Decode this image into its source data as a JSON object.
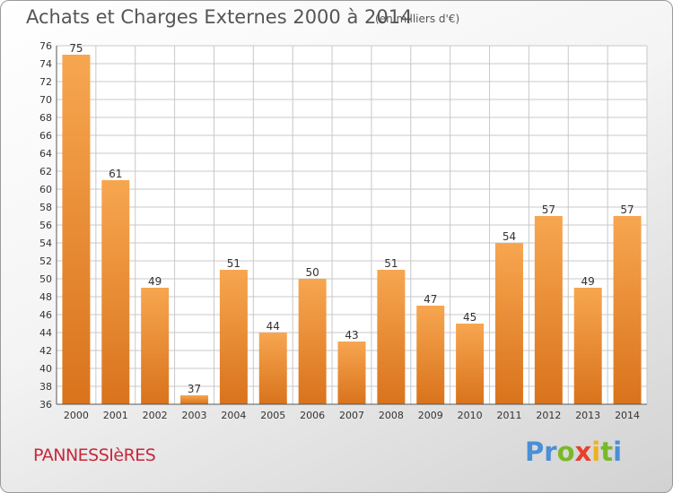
{
  "header": {
    "title": "Achats et Charges Externes 2000 à 2014",
    "subtitle": "(en milliers d'€)"
  },
  "footer": {
    "town": "PANNESSIèRES",
    "logo": {
      "letters": [
        "P",
        "r",
        "o",
        "x",
        "i",
        "t",
        "i"
      ],
      "colors": [
        "#4a8fd8",
        "#4a8fd8",
        "#79b928",
        "#e8402a",
        "#f0b020",
        "#79b928",
        "#4a8fd8"
      ]
    }
  },
  "colors": {
    "bar_top": "#f7a650",
    "bar_bottom": "#d9731c",
    "grid": "#c8c8c8"
  },
  "chart_data": {
    "type": "bar",
    "categories": [
      "2000",
      "2001",
      "2002",
      "2003",
      "2004",
      "2005",
      "2006",
      "2007",
      "2008",
      "2009",
      "2010",
      "2011",
      "2012",
      "2013",
      "2014"
    ],
    "values": [
      75,
      61,
      49,
      37,
      51,
      44,
      50,
      43,
      51,
      47,
      45,
      54,
      57,
      49,
      57
    ],
    "data_labels": [
      "75",
      "61",
      "49",
      "37",
      "51",
      "44",
      "50",
      "43",
      "51",
      "47",
      "45",
      "54",
      "57",
      "49",
      "57"
    ],
    "y_ticks": [
      "36",
      "38",
      "40",
      "42",
      "44",
      "46",
      "48",
      "50",
      "52",
      "54",
      "56",
      "58",
      "60",
      "62",
      "64",
      "66",
      "68",
      "70",
      "72",
      "74",
      "76"
    ],
    "ylim": [
      36,
      76
    ],
    "grid": true,
    "legend": "none"
  }
}
